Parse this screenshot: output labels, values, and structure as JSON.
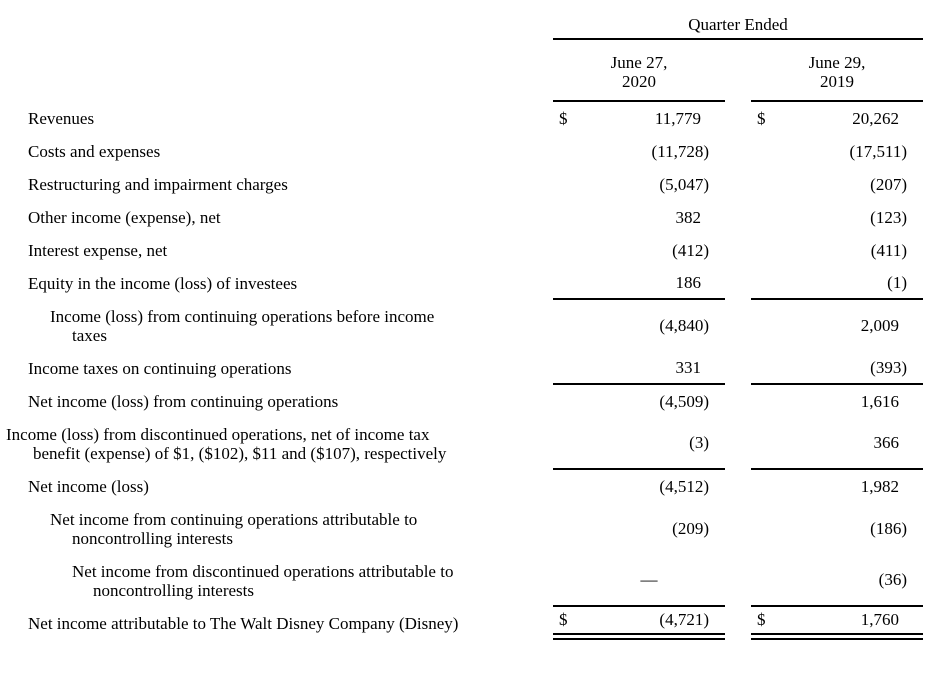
{
  "table": {
    "header": {
      "title": "Quarter Ended"
    },
    "currency_symbol": "$",
    "empty_value": "—",
    "columns": [
      {
        "line1": "June 27,",
        "line2": "2020"
      },
      {
        "line1": "June 29,",
        "line2": "2019"
      }
    ],
    "rows": [
      {
        "lines": [
          {
            "text": "Revenues",
            "indent": 28
          }
        ],
        "dollar": true,
        "values": [
          "11,779",
          "20,262"
        ],
        "rule": "none"
      },
      {
        "lines": [
          {
            "text": "Costs and expenses",
            "indent": 28
          }
        ],
        "dollar": false,
        "values": [
          "(11,728)",
          "(17,511)"
        ],
        "rule": "none"
      },
      {
        "lines": [
          {
            "text": "Restructuring and impairment charges",
            "indent": 28
          }
        ],
        "dollar": false,
        "values": [
          "(5,047)",
          "(207)"
        ],
        "rule": "none"
      },
      {
        "lines": [
          {
            "text": "Other income (expense), net",
            "indent": 28
          }
        ],
        "dollar": false,
        "values": [
          "382",
          "(123)"
        ],
        "rule": "none"
      },
      {
        "lines": [
          {
            "text": "Interest expense, net",
            "indent": 28
          }
        ],
        "dollar": false,
        "values": [
          "(412)",
          "(411)"
        ],
        "rule": "none"
      },
      {
        "lines": [
          {
            "text": "Equity in the income (loss) of investees",
            "indent": 28
          }
        ],
        "dollar": false,
        "values": [
          "186",
          "(1)"
        ],
        "rule": "bottom"
      },
      {
        "lines": [
          {
            "text": "Income (loss) from continuing operations before income",
            "indent": 50
          },
          {
            "text": "taxes",
            "indent": 72
          }
        ],
        "dollar": false,
        "values": [
          "(4,840)",
          "2,009"
        ],
        "rule": "none"
      },
      {
        "lines": [
          {
            "text": "Income taxes on continuing operations",
            "indent": 28
          }
        ],
        "dollar": false,
        "values": [
          "331",
          "(393)"
        ],
        "rule": "bottom"
      },
      {
        "lines": [
          {
            "text": "Net income (loss) from continuing operations",
            "indent": 28
          }
        ],
        "dollar": false,
        "values": [
          "(4,509)",
          "1,616"
        ],
        "rule": "none"
      },
      {
        "lines": [
          {
            "text": "Income (loss) from discontinued operations, net of income tax",
            "indent": 6
          },
          {
            "text": "benefit (expense) of $1, ($102), $11 and ($107), respectively",
            "indent": 33
          }
        ],
        "dollar": false,
        "values": [
          "(3)",
          "366"
        ],
        "rule": "bottom"
      },
      {
        "lines": [
          {
            "text": "Net income (loss)",
            "indent": 28
          }
        ],
        "dollar": false,
        "values": [
          "(4,512)",
          "1,982"
        ],
        "rule": "none"
      },
      {
        "lines": [
          {
            "text": "Net income from continuing operations attributable to",
            "indent": 50
          },
          {
            "text": "noncontrolling interests",
            "indent": 72
          }
        ],
        "dollar": false,
        "values": [
          "(209)",
          "(186)"
        ],
        "rule": "none"
      },
      {
        "lines": [
          {
            "text": "Net income from discontinued operations attributable to",
            "indent": 72
          },
          {
            "text": "noncontrolling interests",
            "indent": 93
          }
        ],
        "dollar": false,
        "values": [
          "—",
          "(36)"
        ],
        "rule": "bottom"
      },
      {
        "lines": [
          {
            "text": "Net income attributable to The Walt Disney Company (Disney)",
            "indent": 28
          }
        ],
        "dollar": true,
        "values": [
          "(4,721)",
          "1,760"
        ],
        "rule": "double"
      }
    ]
  },
  "colors": {
    "background": "#ffffff",
    "text": "#000000",
    "rule": "#000000"
  }
}
